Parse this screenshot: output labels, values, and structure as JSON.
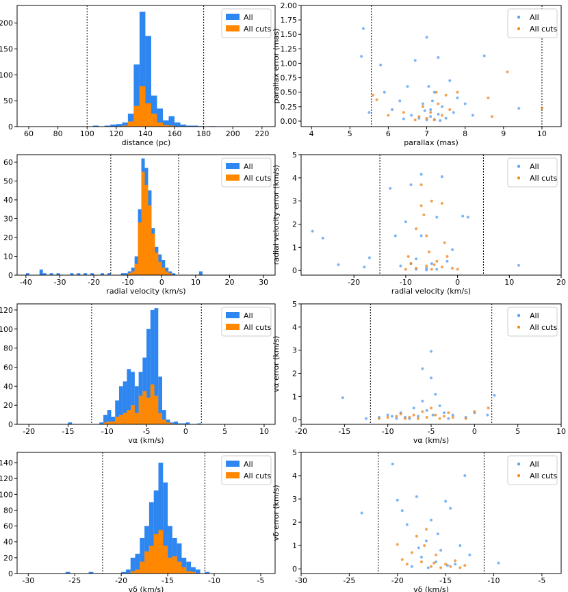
{
  "chart_data": [
    {
      "type": "histogram",
      "xlabel": "distance (pc)",
      "xlim": [
        52,
        229
      ],
      "ylim": [
        0,
        234
      ],
      "xticks": [
        60,
        80,
        100,
        120,
        140,
        160,
        180,
        200,
        220
      ],
      "yticks": [
        0,
        50,
        100,
        150,
        200
      ],
      "vlines": [
        100,
        180
      ],
      "legend": "upper right",
      "bins": [
        104,
        108,
        112,
        116,
        120,
        124,
        128,
        132,
        136,
        140,
        144,
        148,
        152,
        156,
        160,
        164,
        168,
        172,
        176,
        180,
        184,
        188
      ],
      "series": [
        {
          "name": "All",
          "color": "#2e86f0",
          "values": [
            2,
            0,
            2,
            4,
            5,
            8,
            25,
            120,
            222,
            175,
            60,
            35,
            12,
            20,
            8,
            4,
            2,
            2,
            1,
            0,
            1
          ]
        },
        {
          "name": "All cuts",
          "color": "#ff8800",
          "values": [
            0,
            0,
            0,
            0,
            0,
            2,
            10,
            40,
            78,
            45,
            25,
            8,
            3,
            2,
            0,
            0,
            0,
            0,
            0,
            0,
            0
          ]
        }
      ]
    },
    {
      "type": "scatter",
      "xlabel": "parallax (mas)",
      "ylabel": "parallax error (mas)",
      "xlim": [
        3.73,
        10.5
      ],
      "ylim": [
        -0.095,
        2.0
      ],
      "xticks": [
        4,
        5,
        6,
        7,
        8,
        9,
        10
      ],
      "yticks": [
        {
          "value": 0,
          "label": "0.00"
        },
        {
          "value": 0.25,
          "label": "0.25"
        },
        {
          "value": 0.5,
          "label": "0.50"
        },
        {
          "value": 0.75,
          "label": "0.75"
        },
        {
          "value": 1,
          "label": "1.00"
        },
        {
          "value": 1.25,
          "label": "1.25"
        },
        {
          "value": 1.5,
          "label": "1.50"
        },
        {
          "value": 1.75,
          "label": "1.75"
        },
        {
          "value": 2,
          "label": "2.00"
        }
      ],
      "vlines": [
        5.56,
        10.0
      ],
      "legend": "upper right",
      "series": [
        {
          "name": "All",
          "color": "#5aa2f2",
          "x": [
            5.35,
            5.3,
            5.5,
            5.8,
            5.9,
            6.1,
            6.3,
            6.5,
            6.6,
            6.7,
            6.8,
            6.9,
            7.0,
            7.0,
            7.1,
            7.1,
            7.2,
            7.2,
            7.3,
            7.3,
            7.4,
            7.5,
            7.6,
            7.7,
            7.8,
            8.0,
            8.2,
            8.5,
            9.4,
            6.4,
            6.95,
            7.15,
            7.35,
            7.05
          ],
          "y": [
            1.6,
            1.12,
            0.15,
            0.97,
            0.5,
            0.2,
            0.35,
            0.6,
            0.1,
            1.05,
            0.05,
            0.3,
            1.45,
            0.02,
            0.2,
            0.08,
            0.5,
            0.03,
            0.12,
            1.1,
            0.25,
            0.05,
            0.7,
            0.15,
            0.4,
            0.3,
            0.1,
            1.13,
            0.22,
            0.04,
            0.18,
            0.35,
            0.01,
            0.6
          ]
        },
        {
          "name": "All cuts",
          "color": "#f08a24",
          "x": [
            5.6,
            5.7,
            6.0,
            6.4,
            6.8,
            6.9,
            7.0,
            7.1,
            7.2,
            7.3,
            7.4,
            7.5,
            7.6,
            7.8,
            8.6,
            8.7,
            9.1,
            10.0,
            7.25,
            6.7
          ],
          "y": [
            0.45,
            0.37,
            0.1,
            0.15,
            0.08,
            0.25,
            0.05,
            0.15,
            0.02,
            0.3,
            0.1,
            0.45,
            0.2,
            0.5,
            0.4,
            0.08,
            0.85,
            0.22,
            0.5,
            0.02
          ]
        }
      ]
    },
    {
      "type": "histogram",
      "xlabel": "radial velocity (km/s)",
      "xlim": [
        -42.6,
        33.4
      ],
      "ylim": [
        0,
        64
      ],
      "xticks": [
        -40,
        -30,
        -20,
        -10,
        0,
        10,
        20,
        30
      ],
      "yticks": [
        0,
        10,
        20,
        30,
        40,
        50,
        60
      ],
      "vlines": [
        -15,
        5
      ],
      "legend": "upper right",
      "bins": [
        -40,
        -39,
        -38,
        -37,
        -36,
        -35,
        -34,
        -33,
        -32,
        -31,
        -30,
        -29,
        -28,
        -27,
        -26,
        -25,
        -24,
        -23,
        -22,
        -21,
        -20,
        -19,
        -18,
        -17,
        -16,
        -15,
        -14,
        -13,
        -12,
        -11,
        -10,
        -9,
        -8,
        -7,
        -6,
        -5,
        -4,
        -3,
        -2,
        -1,
        0,
        1,
        2,
        3,
        4,
        5,
        6,
        7,
        8,
        9,
        10,
        11,
        12
      ],
      "series": [
        {
          "name": "All",
          "color": "#2e86f0",
          "values": [
            1,
            0,
            0,
            0,
            3,
            1,
            0,
            1,
            0,
            1,
            0,
            0,
            0,
            1,
            0,
            1,
            0,
            1,
            0,
            1,
            0,
            0,
            1,
            0,
            1,
            0,
            0,
            0,
            1,
            1,
            2,
            4,
            10,
            35,
            62,
            57,
            45,
            25,
            15,
            11,
            8,
            4,
            2,
            1,
            0,
            0,
            0,
            0,
            0,
            0,
            0,
            2
          ]
        },
        {
          "name": "All cuts",
          "color": "#ff8800",
          "values": [
            0,
            0,
            0,
            0,
            0,
            0,
            0,
            0,
            0,
            0,
            0,
            0,
            0,
            0,
            0,
            0,
            0,
            0,
            0,
            0,
            0,
            0,
            0,
            0,
            0,
            0,
            0,
            0,
            0,
            0,
            1,
            2,
            6,
            28,
            55,
            48,
            37,
            22,
            12,
            7,
            4,
            2,
            1,
            0,
            0,
            0,
            0,
            0,
            0,
            0,
            0,
            0
          ]
        }
      ]
    },
    {
      "type": "scatter",
      "xlabel": "radial velocity (km/s)",
      "ylabel": "radial velocity error (km/s)",
      "xlim": [
        -30.2,
        20
      ],
      "ylim": [
        -0.2,
        5
      ],
      "xticks": [
        -20,
        -10,
        0,
        10,
        20
      ],
      "yticks": [
        0,
        1,
        2,
        3,
        4,
        5
      ],
      "vlines": [
        -15,
        5
      ],
      "legend": "upper right",
      "series": [
        {
          "name": "All",
          "color": "#5aa2f2",
          "x": [
            -28,
            -26,
            -23,
            -18,
            -17,
            -13,
            -12,
            -11,
            -10,
            -9,
            -8,
            -7,
            -7,
            -6,
            -5,
            -4,
            -3,
            -2,
            -1,
            1,
            2,
            11.8,
            -6,
            -8,
            -4,
            -9
          ],
          "y": [
            1.7,
            1.4,
            0.25,
            0.15,
            0.55,
            3.55,
            1.5,
            0.2,
            2.1,
            3.7,
            0.5,
            4.15,
            1.5,
            0.1,
            0.3,
            2.3,
            4.05,
            0.4,
            0.9,
            2.35,
            2.3,
            0.22,
            0.02,
            0.05,
            0.05,
            0.3
          ]
        },
        {
          "name": "All cuts",
          "color": "#f08a24",
          "x": [
            -10,
            -9,
            -8,
            -7,
            -7,
            -6,
            -6,
            -5,
            -5,
            -4,
            -3,
            -3,
            -2,
            -1,
            0,
            -8,
            -6.5,
            -5.5,
            -9.5,
            -2.5,
            -4.5
          ],
          "y": [
            0.05,
            0.3,
            0.1,
            3.7,
            2.8,
            0.2,
            1.5,
            0.05,
            3.0,
            0.4,
            0.15,
            2.9,
            0.6,
            0.1,
            0.05,
            1.8,
            2.4,
            0.8,
            0.6,
            1.2,
            0.25
          ]
        }
      ]
    },
    {
      "type": "histogram",
      "xlabel": "vα (km/s)",
      "xlim": [
        -21.5,
        11.4
      ],
      "ylim": [
        0,
        126.4
      ],
      "xticks": [
        -20,
        -15,
        -10,
        -5,
        0,
        5,
        10
      ],
      "yticks": [
        0,
        20,
        40,
        60,
        80,
        100,
        120
      ],
      "vlines": [
        -12,
        2
      ],
      "legend": "upper right",
      "bins": [
        -15.5,
        -15,
        -14.5,
        -14,
        -13.5,
        -13,
        -12.5,
        -12,
        -11.5,
        -11,
        -10.5,
        -10,
        -9.5,
        -9,
        -8.5,
        -8,
        -7.5,
        -7,
        -6.5,
        -6,
        -5.5,
        -5,
        -4.5,
        -4,
        -3.5,
        -3,
        -2.5,
        -2,
        -1.5,
        -1,
        -0.5,
        0,
        0.5,
        1,
        1.5,
        2
      ],
      "series": [
        {
          "name": "All",
          "color": "#2e86f0",
          "values": [
            0,
            2,
            0,
            0,
            0,
            0,
            0,
            0,
            0,
            2,
            10,
            15,
            8,
            25,
            40,
            45,
            58,
            55,
            40,
            55,
            70,
            100,
            120,
            122,
            50,
            15,
            5,
            2,
            3,
            1,
            1,
            2,
            0,
            0,
            1
          ]
        },
        {
          "name": "All cuts",
          "color": "#ff8800",
          "values": [
            0,
            0,
            0,
            0,
            0,
            0,
            0,
            0,
            0,
            0,
            2,
            3,
            3,
            8,
            10,
            12,
            15,
            20,
            12,
            30,
            35,
            28,
            42,
            30,
            12,
            5,
            2,
            1,
            0,
            0,
            0,
            0,
            0,
            0,
            0
          ]
        }
      ]
    },
    {
      "type": "scatter",
      "xlabel": "vα (km/s)",
      "ylabel": "vα error (km/s)",
      "xlim": [
        -20,
        10
      ],
      "ylim": [
        -0.2,
        5
      ],
      "xticks": [
        -20,
        -15,
        -10,
        -5,
        0,
        5,
        10
      ],
      "yticks": [
        0,
        1,
        2,
        3,
        4,
        5
      ],
      "vlines": [
        -12,
        2
      ],
      "legend": "upper right",
      "series": [
        {
          "name": "All",
          "color": "#5aa2f2",
          "x": [
            -15.2,
            -12.5,
            -11,
            -10,
            -9,
            -8.5,
            -8,
            -7,
            -6.5,
            -6,
            -5.5,
            -5,
            -5,
            -4.8,
            -4.5,
            -4,
            -3.5,
            -3,
            -2.5,
            -1,
            0,
            1.5,
            2.3,
            -6,
            -7.5,
            -9.5
          ],
          "y": [
            0.95,
            0.05,
            0.1,
            0.2,
            0.05,
            0.3,
            0.1,
            0.5,
            0.15,
            0.8,
            0.4,
            2.95,
            1.8,
            0.2,
            1.1,
            0.6,
            0.3,
            0.05,
            0.2,
            0.1,
            0.3,
            0.2,
            1.05,
            2.2,
            0.05,
            0.15
          ]
        },
        {
          "name": "All cuts",
          "color": "#f08a24",
          "x": [
            -11,
            -10,
            -9,
            -8,
            -7,
            -6.5,
            -6,
            -5.5,
            -5,
            -4.5,
            -4,
            -3.5,
            -3,
            -2.5,
            -1,
            0,
            1.6,
            -8.5,
            -7.5
          ],
          "y": [
            0.05,
            0.1,
            0.15,
            0.05,
            0.2,
            0.05,
            0.35,
            0.1,
            0.5,
            0.2,
            0.05,
            0.15,
            0.3,
            0.1,
            0.05,
            0.35,
            0.5,
            0.25,
            0.1
          ]
        }
      ]
    },
    {
      "type": "histogram",
      "xlabel": "vδ (km/s)",
      "xlim": [
        -31.2,
        -3.45
      ],
      "ylim": [
        0,
        153
      ],
      "xticks": [
        -30,
        -25,
        -20,
        -15,
        -10,
        -5
      ],
      "yticks": [
        0,
        20,
        40,
        60,
        80,
        100,
        120,
        140
      ],
      "vlines": [
        -22,
        -11
      ],
      "legend": "upper right",
      "bins": [
        -26.5,
        -26,
        -25.5,
        -25,
        -24.5,
        -24,
        -23.5,
        -23,
        -22.5,
        -22,
        -21.5,
        -21,
        -20.5,
        -20,
        -19.5,
        -19,
        -18.5,
        -18,
        -17.5,
        -17,
        -16.5,
        -16,
        -15.5,
        -15,
        -14.5,
        -14,
        -13.5,
        -13,
        -12.5,
        -12,
        -11.5,
        -11,
        -10.5
      ],
      "series": [
        {
          "name": "All",
          "color": "#2e86f0",
          "values": [
            0,
            2,
            0,
            0,
            0,
            0,
            2,
            0,
            0,
            0,
            0,
            0,
            0,
            2,
            5,
            20,
            25,
            45,
            60,
            90,
            105,
            140,
            115,
            60,
            45,
            38,
            20,
            15,
            8,
            5,
            0,
            2
          ]
        },
        {
          "name": "All cuts",
          "color": "#ff8800",
          "values": [
            0,
            0,
            0,
            0,
            0,
            0,
            0,
            0,
            0,
            0,
            0,
            0,
            0,
            0,
            0,
            3,
            5,
            15,
            28,
            35,
            50,
            55,
            35,
            20,
            22,
            15,
            8,
            3,
            2,
            0,
            0,
            0
          ]
        }
      ]
    },
    {
      "type": "scatter",
      "xlabel": "vδ (km/s)",
      "ylabel": "vδ error (km/s)",
      "xlim": [
        -30,
        -3
      ],
      "ylim": [
        -0.2,
        5
      ],
      "xticks": [
        -30,
        -25,
        -20,
        -15,
        -10,
        -5
      ],
      "yticks": [
        0,
        1,
        2,
        3,
        4,
        5
      ],
      "vlines": [
        -22,
        -11
      ],
      "legend": "upper right",
      "series": [
        {
          "name": "All",
          "color": "#5aa2f2",
          "x": [
            -23.7,
            -20.5,
            -20,
            -19.5,
            -19,
            -18,
            -17.5,
            -17,
            -16.5,
            -16,
            -15.5,
            -15,
            -14.5,
            -14,
            -13.5,
            -13,
            -12.5,
            -9.5,
            -18.5,
            -16.8,
            -15.8,
            -17.8,
            -14.8
          ],
          "y": [
            2.4,
            4.5,
            2.95,
            2.5,
            1.9,
            3.1,
            0.5,
            1.2,
            2.1,
            0.3,
            0.8,
            2.9,
            2.6,
            0.2,
            1.0,
            4.0,
            0.6,
            0.25,
            0.1,
            0.05,
            1.5,
            0.9,
            0.15
          ]
        },
        {
          "name": "All cuts",
          "color": "#f08a24",
          "x": [
            -20,
            -19.5,
            -19,
            -18,
            -17.5,
            -17,
            -16.5,
            -16,
            -15.5,
            -15,
            -14.5,
            -14,
            -13.5,
            -13,
            -18.5,
            -17.2,
            -16.2
          ],
          "y": [
            1.05,
            0.4,
            0.2,
            1.4,
            0.3,
            1.7,
            0.1,
            0.6,
            0.05,
            0.2,
            0.1,
            0.35,
            0.05,
            0.15,
            0.7,
            1.0,
            0.25
          ]
        }
      ]
    }
  ]
}
